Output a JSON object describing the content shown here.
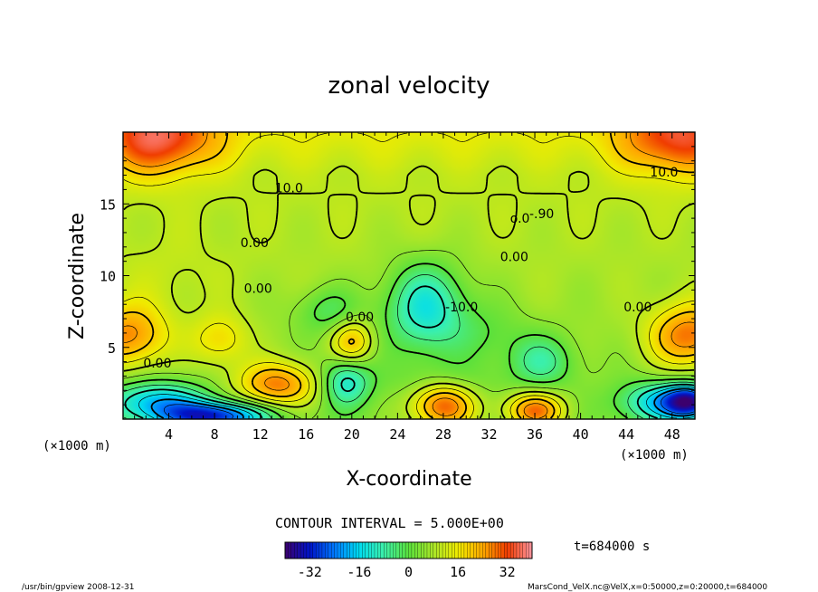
{
  "chart_data": {
    "type": "heatmap",
    "title": "zonal velocity",
    "xlabel": "X-coordinate",
    "ylabel": "Z-coordinate",
    "x_unit_left": "(×1000 m)",
    "x_unit_right": "(×1000 m)",
    "xlim": [
      0,
      50
    ],
    "ylim": [
      0,
      20
    ],
    "x_ticks": [
      4,
      8,
      12,
      16,
      20,
      24,
      28,
      32,
      36,
      40,
      44,
      48
    ],
    "y_ticks": [
      5,
      10,
      15
    ],
    "contour_interval_text": "CONTOUR INTERVAL = 5.000E+00",
    "time_label": "t=684000 s",
    "colorbar": {
      "min": -40,
      "max": 40,
      "tick_values": [
        -32,
        -16,
        0,
        16,
        32
      ]
    },
    "contour_labels": [
      {
        "text": "10.0",
        "x": 14.5,
        "z": 15.8
      },
      {
        "text": "10.0",
        "x": 47.3,
        "z": 16.9
      },
      {
        "text": "0.00",
        "x": 11.5,
        "z": 12.0
      },
      {
        "text": "0.00",
        "x": 34.2,
        "z": 11.0
      },
      {
        "text": "0.00",
        "x": 11.8,
        "z": 8.8
      },
      {
        "text": "0.00",
        "x": 20.7,
        "z": 6.8
      },
      {
        "text": "-10.0",
        "x": 29.6,
        "z": 7.5
      },
      {
        "text": "0.00",
        "x": 45.0,
        "z": 7.5
      },
      {
        "text": "0.00",
        "x": 3.0,
        "z": 3.6
      },
      {
        "text": "-.90",
        "x": 36.6,
        "z": 14.0
      },
      {
        "text": "o.0",
        "x": 34.7,
        "z": 13.7
      }
    ],
    "field_features": [
      {
        "x": 3.0,
        "z": 19.5,
        "value": 22,
        "sx": 3.5,
        "sz": 1.8
      },
      {
        "x": 48.5,
        "z": 19.5,
        "value": 20,
        "sx": 3.5,
        "sz": 1.8
      },
      {
        "x": 0.5,
        "z": 5.8,
        "value": 20,
        "sx": 2.5,
        "sz": 1.6
      },
      {
        "x": 49.5,
        "z": 5.8,
        "value": 22,
        "sx": 2.5,
        "sz": 1.6
      },
      {
        "x": 8.5,
        "z": 5.5,
        "value": 12,
        "sx": 1.8,
        "sz": 1.3
      },
      {
        "x": 20.0,
        "z": 5.4,
        "value": 16,
        "sx": 1.3,
        "sz": 1.1
      },
      {
        "x": 13.5,
        "z": 2.4,
        "value": 22,
        "sx": 2.5,
        "sz": 1.1
      },
      {
        "x": 28.0,
        "z": 1.0,
        "value": 26,
        "sx": 2.0,
        "sz": 1.2
      },
      {
        "x": 36.0,
        "z": 0.6,
        "value": 24,
        "sx": 1.8,
        "sz": 0.9
      },
      {
        "x": 4.0,
        "z": 10.0,
        "value": 3,
        "sx": 4.5,
        "sz": 2.0
      },
      {
        "x": 26.5,
        "z": 7.8,
        "value": -20,
        "sx": 2.5,
        "sz": 2.2
      },
      {
        "x": 18.0,
        "z": 7.5,
        "value": -9,
        "sx": 2.0,
        "sz": 1.2
      },
      {
        "x": 19.5,
        "z": 2.6,
        "value": -18,
        "sx": 1.5,
        "sz": 1.2
      },
      {
        "x": 36.5,
        "z": 4.0,
        "value": -12,
        "sx": 2.0,
        "sz": 1.3
      },
      {
        "x": 3.0,
        "z": 1.2,
        "value": -22,
        "sx": 3.0,
        "sz": 1.0
      },
      {
        "x": 8.0,
        "z": 0.2,
        "value": -34,
        "sx": 3.2,
        "sz": 0.7
      },
      {
        "x": 47.0,
        "z": 1.2,
        "value": -20,
        "sx": 2.5,
        "sz": 1.0
      },
      {
        "x": 49.5,
        "z": 1.2,
        "value": -34,
        "sx": 1.5,
        "sz": 0.8
      },
      {
        "x": 28.0,
        "z": 2.5,
        "value": -6,
        "sx": 3.0,
        "sz": 1.0
      },
      {
        "x": 32.0,
        "z": 6.0,
        "value": -5,
        "sx": 2.5,
        "sz": 1.5
      }
    ],
    "grid": false
  },
  "footer": {
    "program": "/usr/bin/gpview  2008-12-31",
    "source": "MarsCond_VelX.nc@VelX,x=0:50000,z=0:20000,t=684000"
  }
}
